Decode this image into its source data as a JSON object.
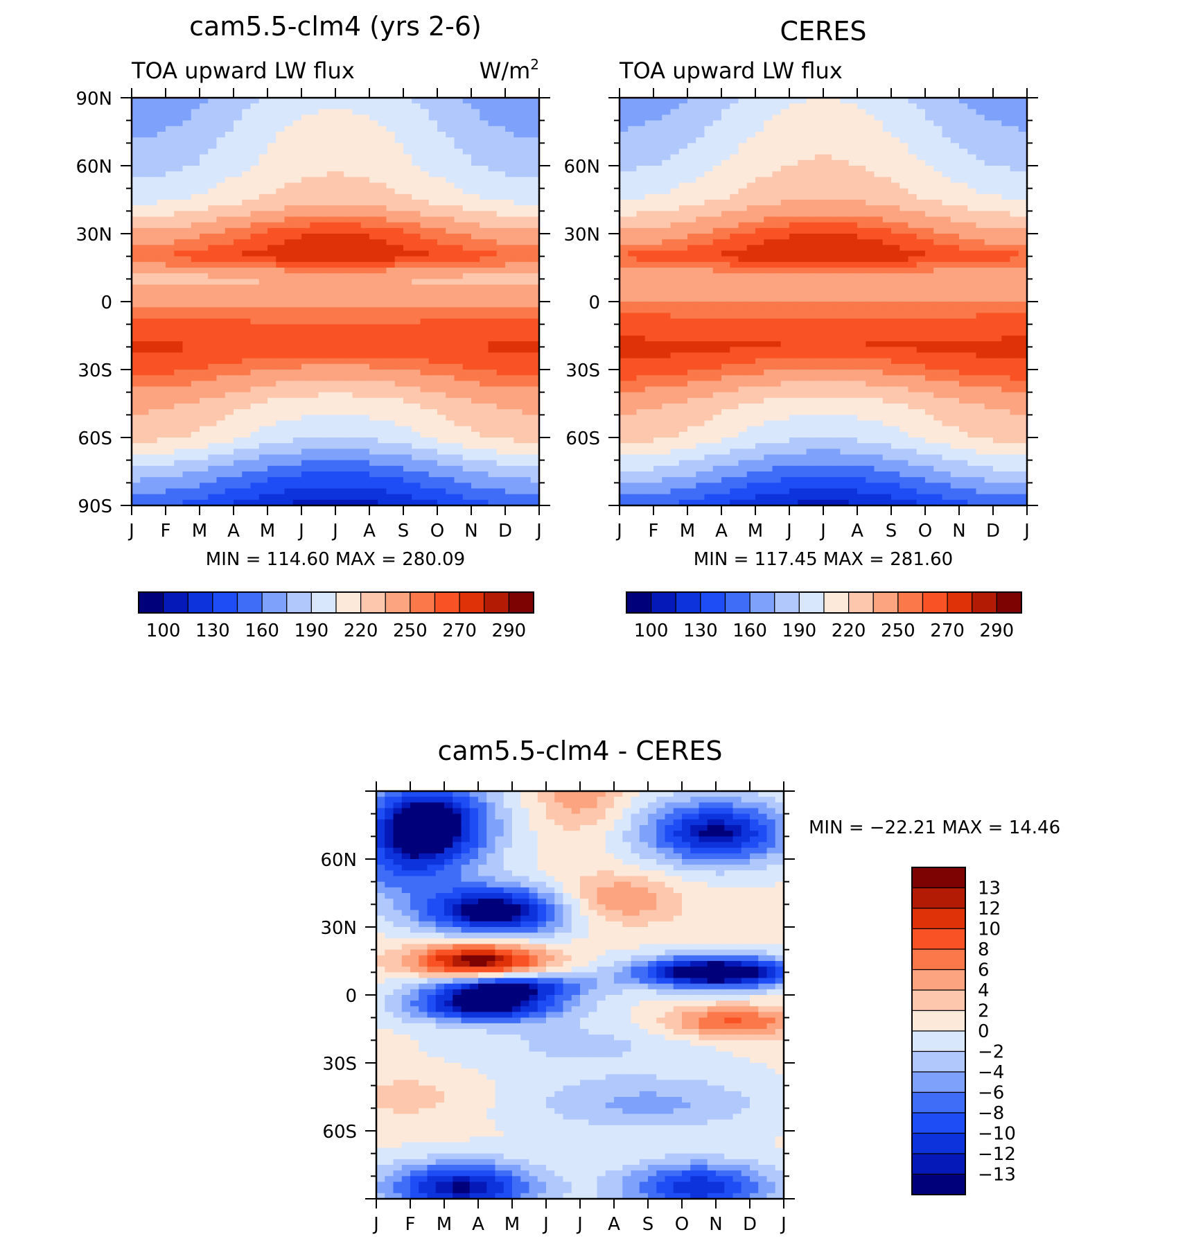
{
  "chart_data": [
    {
      "type": "heatmap",
      "title": "cam5.5-clm4 (yrs 2-6)",
      "subtitle_left": "TOA upward LW flux",
      "subtitle_right": "W/m",
      "subtitle_right_sup": "2",
      "x_tick_labels": [
        "J",
        "F",
        "M",
        "A",
        "M",
        "J",
        "J",
        "A",
        "S",
        "O",
        "N",
        "D",
        "J"
      ],
      "y_tick_labels": [
        "90N",
        "60N",
        "30N",
        "0",
        "30S",
        "60S",
        "90S"
      ],
      "y_ticks_deg": [
        90,
        60,
        30,
        0,
        -30,
        -60,
        -90
      ],
      "ylim": [
        -90,
        90
      ],
      "stats": "MIN = 114.60 MAX = 280.09",
      "min": 114.6,
      "max": 280.09,
      "colorbar_labels": [
        "100",
        "130",
        "160",
        "190",
        "220",
        "250",
        "270",
        "290"
      ],
      "colorbar_levels": [
        100,
        115,
        130,
        145,
        160,
        175,
        190,
        205,
        220,
        235,
        250,
        260,
        270,
        280,
        290
      ],
      "lat_profile": [
        [
          90,
          182
        ],
        [
          75,
          192
        ],
        [
          60,
          200
        ],
        [
          45,
          215
        ],
        [
          30,
          255
        ],
        [
          20,
          270
        ],
        [
          10,
          232
        ],
        [
          0,
          248
        ],
        [
          -10,
          262
        ],
        [
          -20,
          270
        ],
        [
          -30,
          255
        ],
        [
          -45,
          225
        ],
        [
          -60,
          208
        ],
        [
          -75,
          165
        ],
        [
          -90,
          128
        ]
      ]
    },
    {
      "type": "heatmap",
      "title": "CERES",
      "subtitle_left": "TOA upward LW flux",
      "x_tick_labels": [
        "J",
        "F",
        "M",
        "A",
        "M",
        "J",
        "J",
        "A",
        "S",
        "O",
        "N",
        "D",
        "J"
      ],
      "y_tick_labels": [
        "60N",
        "30N",
        "0",
        "30S",
        "60S"
      ],
      "y_ticks_deg": [
        60,
        30,
        0,
        -30,
        -60
      ],
      "ylim": [
        -90,
        90
      ],
      "stats": "MIN = 117.45 MAX = 281.60",
      "min": 117.45,
      "max": 281.6,
      "colorbar_labels": [
        "100",
        "130",
        "160",
        "190",
        "220",
        "250",
        "270",
        "290"
      ],
      "colorbar_levels": [
        100,
        115,
        130,
        145,
        160,
        175,
        190,
        205,
        220,
        235,
        250,
        260,
        270,
        280,
        290
      ],
      "lat_profile": [
        [
          90,
          185
        ],
        [
          75,
          195
        ],
        [
          60,
          205
        ],
        [
          45,
          220
        ],
        [
          30,
          255
        ],
        [
          20,
          272
        ],
        [
          10,
          238
        ],
        [
          0,
          250
        ],
        [
          -10,
          265
        ],
        [
          -20,
          272
        ],
        [
          -30,
          258
        ],
        [
          -45,
          225
        ],
        [
          -60,
          208
        ],
        [
          -75,
          170
        ],
        [
          -90,
          130
        ]
      ]
    },
    {
      "type": "heatmap",
      "title": "cam5.5-clm4 - CERES",
      "x_tick_labels": [
        "J",
        "F",
        "M",
        "A",
        "M",
        "J",
        "J",
        "A",
        "S",
        "O",
        "N",
        "D",
        "J"
      ],
      "y_tick_labels": [
        "60N",
        "30N",
        "0",
        "30S",
        "60S"
      ],
      "y_ticks_deg": [
        60,
        30,
        0,
        -30,
        -60
      ],
      "ylim": [
        -90,
        90
      ],
      "stats": "MIN = −22.21 MAX =   14.46",
      "min": -22.21,
      "max": 14.46,
      "colorbar_labels": [
        "13",
        "12",
        "10",
        "8",
        "6",
        "4",
        "2",
        "0",
        "−2",
        "−4",
        "−6",
        "−8",
        "−10",
        "−12",
        "−13"
      ],
      "colorbar_levels": [
        -13,
        -12,
        -10,
        -8,
        -6,
        -4,
        -2,
        0,
        2,
        4,
        6,
        8,
        10,
        12,
        13
      ]
    }
  ],
  "colors": {
    "fill_palette": [
      "#00007a",
      "#0519b8",
      "#0d33dc",
      "#1e4cf5",
      "#3f6df7",
      "#7ea2fb",
      "#b1c8fd",
      "#d9e7fd",
      "#fde9da",
      "#fdc7ae",
      "#fca37f",
      "#fa7849",
      "#f95325",
      "#e03209",
      "#b41b05",
      "#7d0303"
    ]
  }
}
